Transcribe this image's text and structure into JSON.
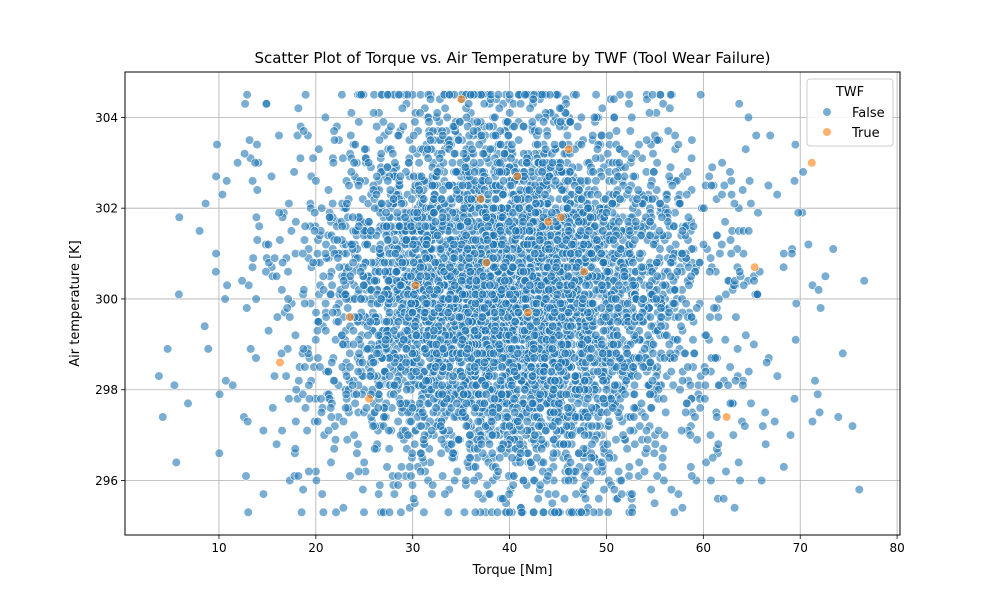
{
  "chart_data": {
    "type": "scatter",
    "title": "Scatter Plot of Torque vs. Air Temperature by TWF (Tool Wear Failure)",
    "xlabel": "Torque [Nm]",
    "ylabel": "Air temperature [K]",
    "xlim": [
      0.3,
      80.3
    ],
    "ylim": [
      294.8,
      305.0
    ],
    "xticks": [
      10,
      20,
      30,
      40,
      50,
      60,
      70,
      80
    ],
    "yticks": [
      296,
      298,
      300,
      302,
      304
    ],
    "grid": true,
    "legend": {
      "title": "TWF",
      "placement": "top-right"
    },
    "series": [
      {
        "name": "False",
        "color": "#1f77b4",
        "n": 6000,
        "x_mean": 40.0,
        "x_sd": 10.0,
        "x_min": 3.8,
        "x_max": 76.6,
        "y_mean": 300.0,
        "y_sd": 2.0,
        "y_min": 295.3,
        "y_max": 304.5,
        "outliers": [
          {
            "x": 3.8,
            "y": 298.3
          },
          {
            "x": 4.2,
            "y": 297.4
          },
          {
            "x": 4.7,
            "y": 298.9
          },
          {
            "x": 5.6,
            "y": 296.4
          },
          {
            "x": 5.9,
            "y": 301.8
          },
          {
            "x": 8.0,
            "y": 301.5
          },
          {
            "x": 8.9,
            "y": 298.9
          },
          {
            "x": 9.7,
            "y": 302.7
          },
          {
            "x": 9.8,
            "y": 303.4
          },
          {
            "x": 9.7,
            "y": 301.0
          },
          {
            "x": 10.8,
            "y": 302.6
          },
          {
            "x": 10.7,
            "y": 298.2
          },
          {
            "x": 12.7,
            "y": 304.3
          },
          {
            "x": 14.6,
            "y": 295.7
          },
          {
            "x": 66.9,
            "y": 303.6
          },
          {
            "x": 70.3,
            "y": 302.8
          },
          {
            "x": 71.8,
            "y": 297.9
          },
          {
            "x": 71.9,
            "y": 300.2
          },
          {
            "x": 72.0,
            "y": 297.5
          },
          {
            "x": 72.6,
            "y": 300.5
          },
          {
            "x": 73.4,
            "y": 301.1
          },
          {
            "x": 74.4,
            "y": 298.8
          },
          {
            "x": 75.4,
            "y": 297.2
          },
          {
            "x": 76.1,
            "y": 295.8
          },
          {
            "x": 76.6,
            "y": 300.4
          },
          {
            "x": 68.3,
            "y": 296.3
          },
          {
            "x": 69.0,
            "y": 297.0
          },
          {
            "x": 69.6,
            "y": 299.9
          },
          {
            "x": 69.8,
            "y": 301.9
          },
          {
            "x": 69.5,
            "y": 303.4
          },
          {
            "x": 61.5,
            "y": 295.6
          },
          {
            "x": 62.1,
            "y": 295.6
          },
          {
            "x": 14.9,
            "y": 304.3
          },
          {
            "x": 18.2,
            "y": 304.2
          },
          {
            "x": 63.7,
            "y": 304.3
          }
        ]
      },
      {
        "name": "True",
        "color": "#ff7f0e",
        "points": [
          {
            "x": 16.3,
            "y": 298.6
          },
          {
            "x": 23.5,
            "y": 299.6
          },
          {
            "x": 25.5,
            "y": 297.8
          },
          {
            "x": 30.3,
            "y": 300.3
          },
          {
            "x": 35.0,
            "y": 304.4
          },
          {
            "x": 37.0,
            "y": 302.2
          },
          {
            "x": 37.6,
            "y": 300.8
          },
          {
            "x": 40.8,
            "y": 302.7
          },
          {
            "x": 41.9,
            "y": 299.7
          },
          {
            "x": 44.0,
            "y": 301.7
          },
          {
            "x": 45.3,
            "y": 301.8
          },
          {
            "x": 46.1,
            "y": 303.3
          },
          {
            "x": 47.7,
            "y": 300.6
          },
          {
            "x": 62.4,
            "y": 297.4
          },
          {
            "x": 65.3,
            "y": 300.7
          },
          {
            "x": 71.2,
            "y": 303.0
          }
        ]
      }
    ]
  }
}
